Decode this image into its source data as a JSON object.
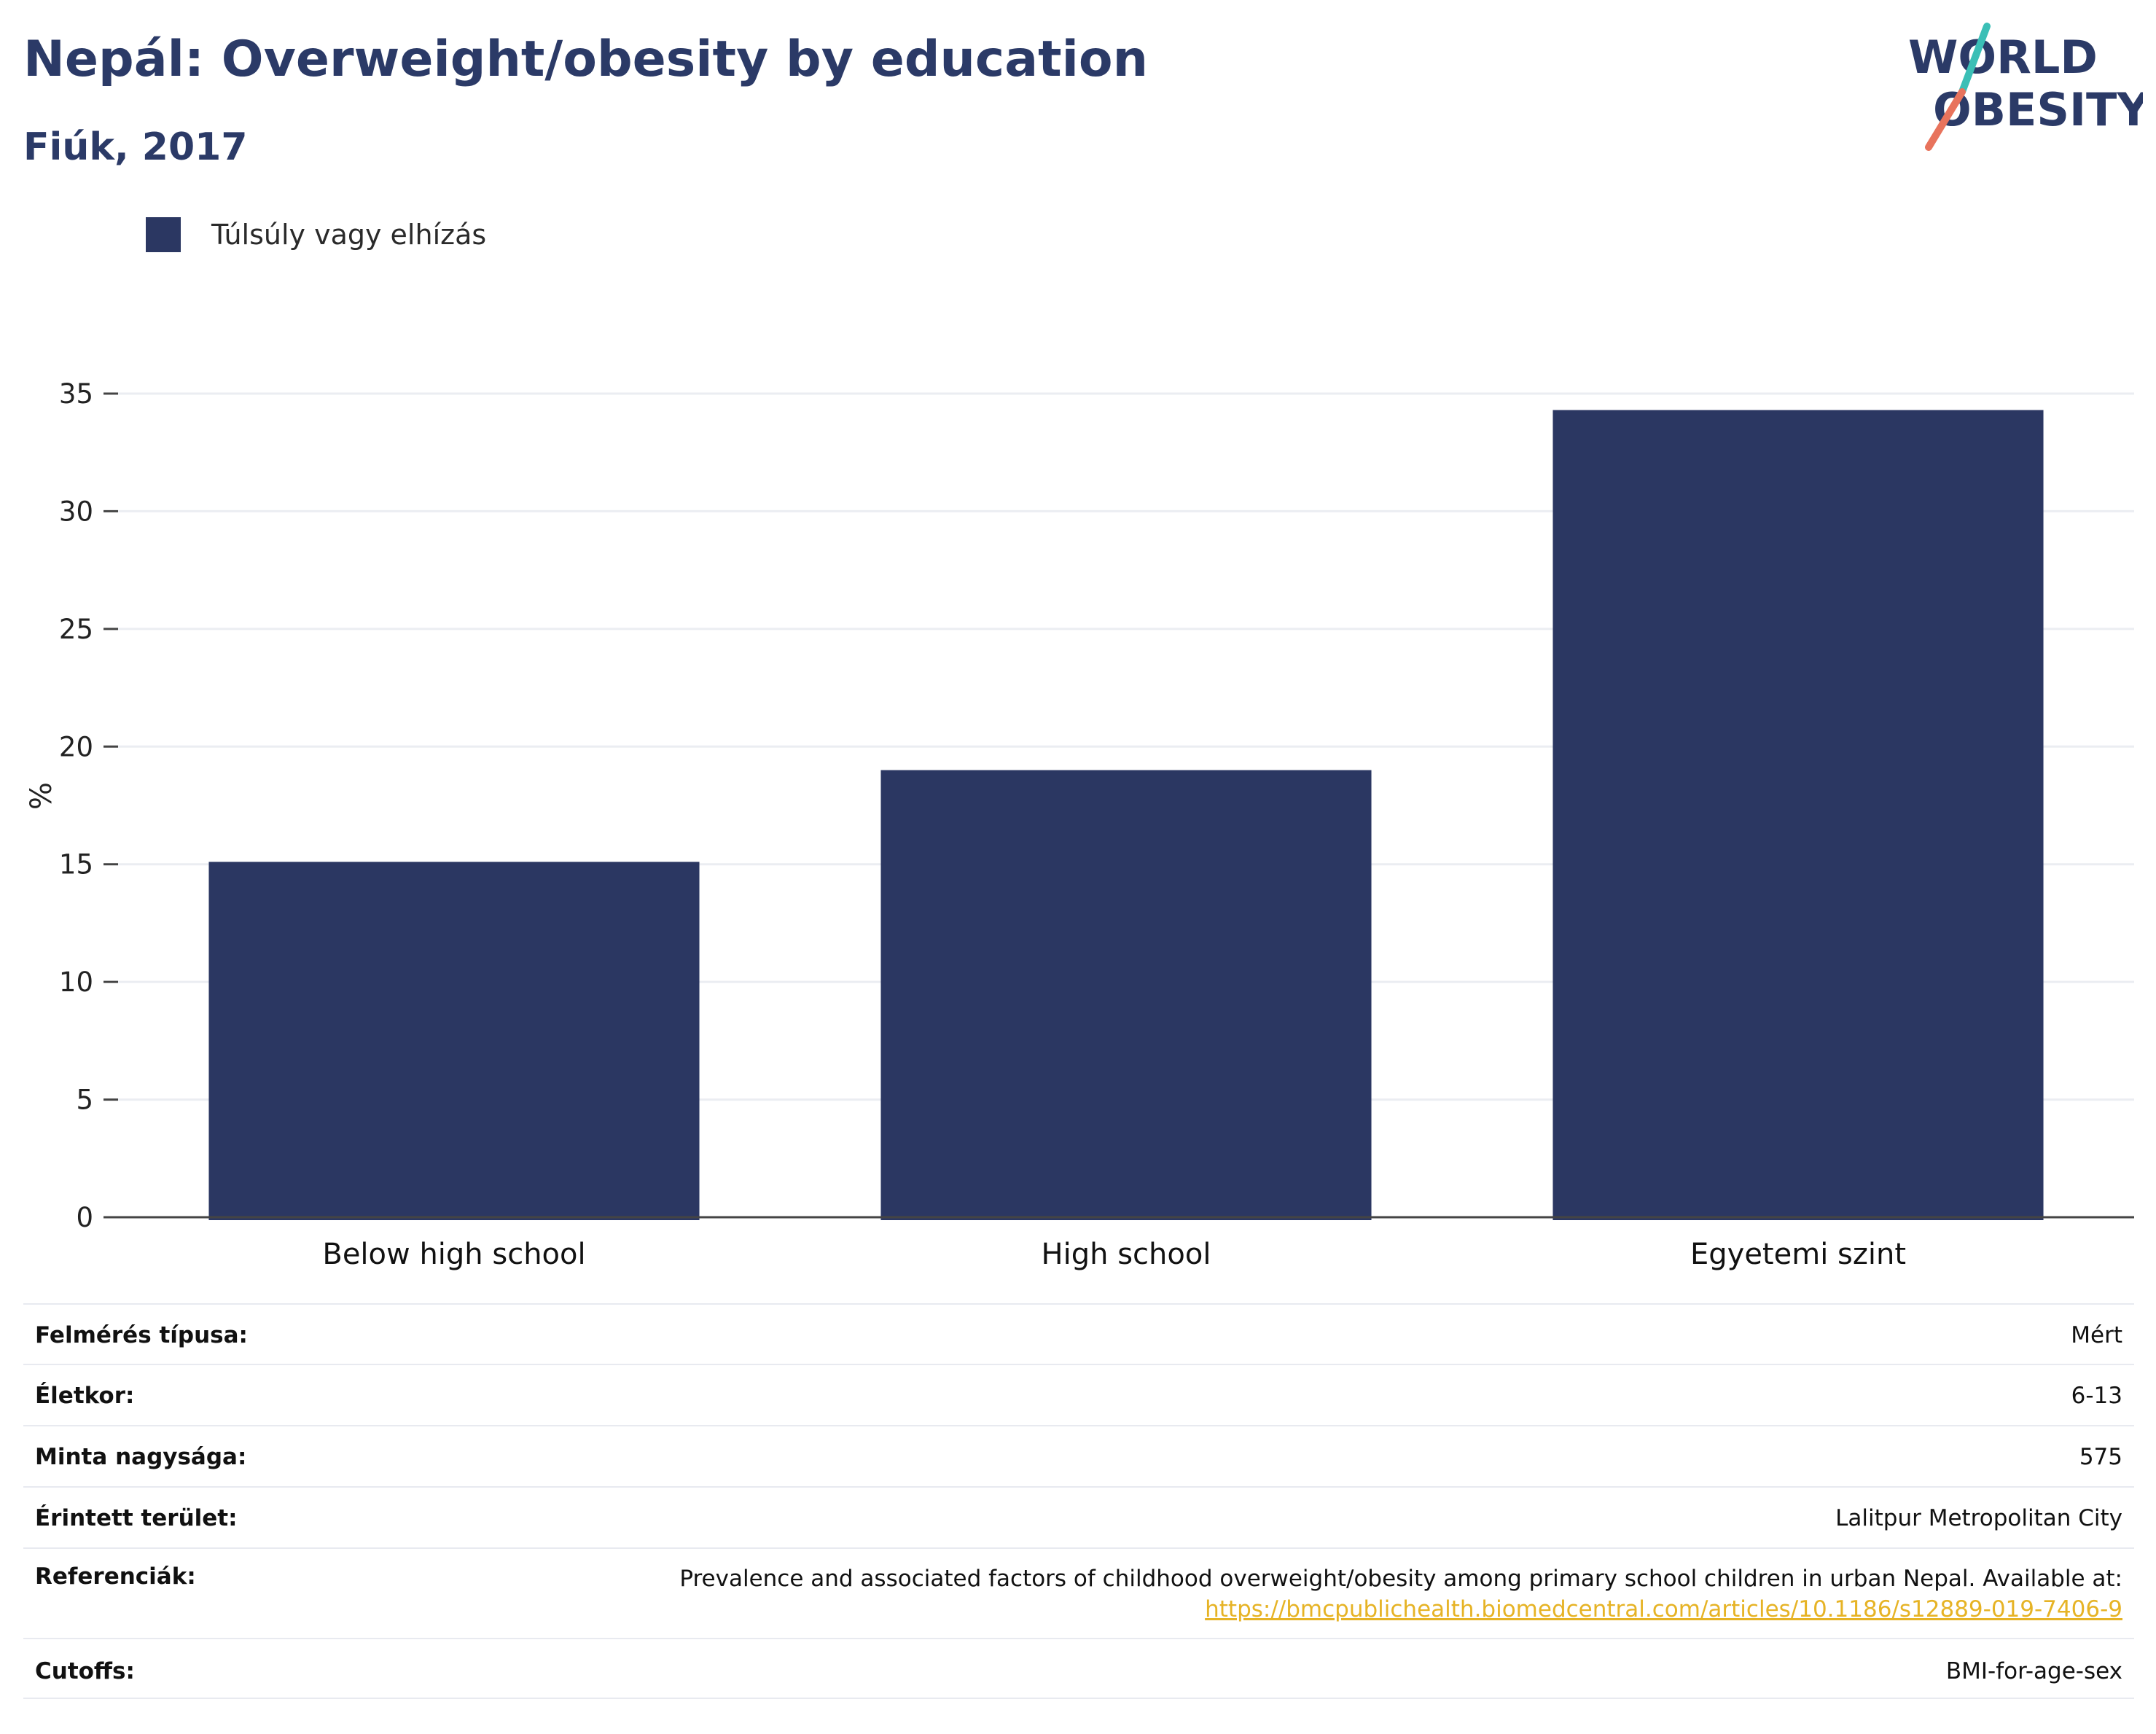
{
  "header": {
    "title": "Nepál: Overweight/obesity by education",
    "subtitle": "Fiúk, 2017"
  },
  "logo": {
    "line1": "WORLD",
    "line2": "OBESITY",
    "colors": {
      "text": "#2b3a67",
      "slash_top": "#3bbfb6",
      "slash_bottom": "#e8735c"
    }
  },
  "legend": {
    "items": [
      {
        "label": "Túlsúly vagy elhízás",
        "color": "#2b3762"
      }
    ]
  },
  "chart_data": {
    "type": "bar",
    "categories": [
      "Below high school",
      "High school",
      "Egyetemi szint"
    ],
    "series": [
      {
        "name": "Túlsúly vagy elhízás",
        "values": [
          15.1,
          19.0,
          34.3
        ],
        "color": "#2b3762"
      }
    ],
    "title": "Nepál: Overweight/obesity by education",
    "subtitle": "Fiúk, 2017",
    "xlabel": "",
    "ylabel": "%",
    "ylim": [
      0,
      35
    ],
    "yticks": [
      0,
      5,
      10,
      15,
      20,
      25,
      30,
      35
    ],
    "grid": true,
    "legend_position": "top-left"
  },
  "info": {
    "survey_type": {
      "label": "Felmérés típusa:",
      "value": "Mért"
    },
    "age": {
      "label": "Életkor:",
      "value": "6-13"
    },
    "sample_size": {
      "label": "Minta nagysága:",
      "value": "575"
    },
    "area": {
      "label": "Érintett terület:",
      "value": "Lalitpur Metropolitan City"
    },
    "references": {
      "label": "Referenciák:",
      "text": "Prevalence and associated factors of childhood overweight/obesity among primary school children in urban Nepal. Available at:",
      "link": "https://bmcpublichealth.biomedcentral.com/articles/10.1186/s12889-019-7406-9"
    },
    "cutoffs": {
      "label": "Cutoffs:",
      "value": "BMI-for-age-sex"
    }
  }
}
